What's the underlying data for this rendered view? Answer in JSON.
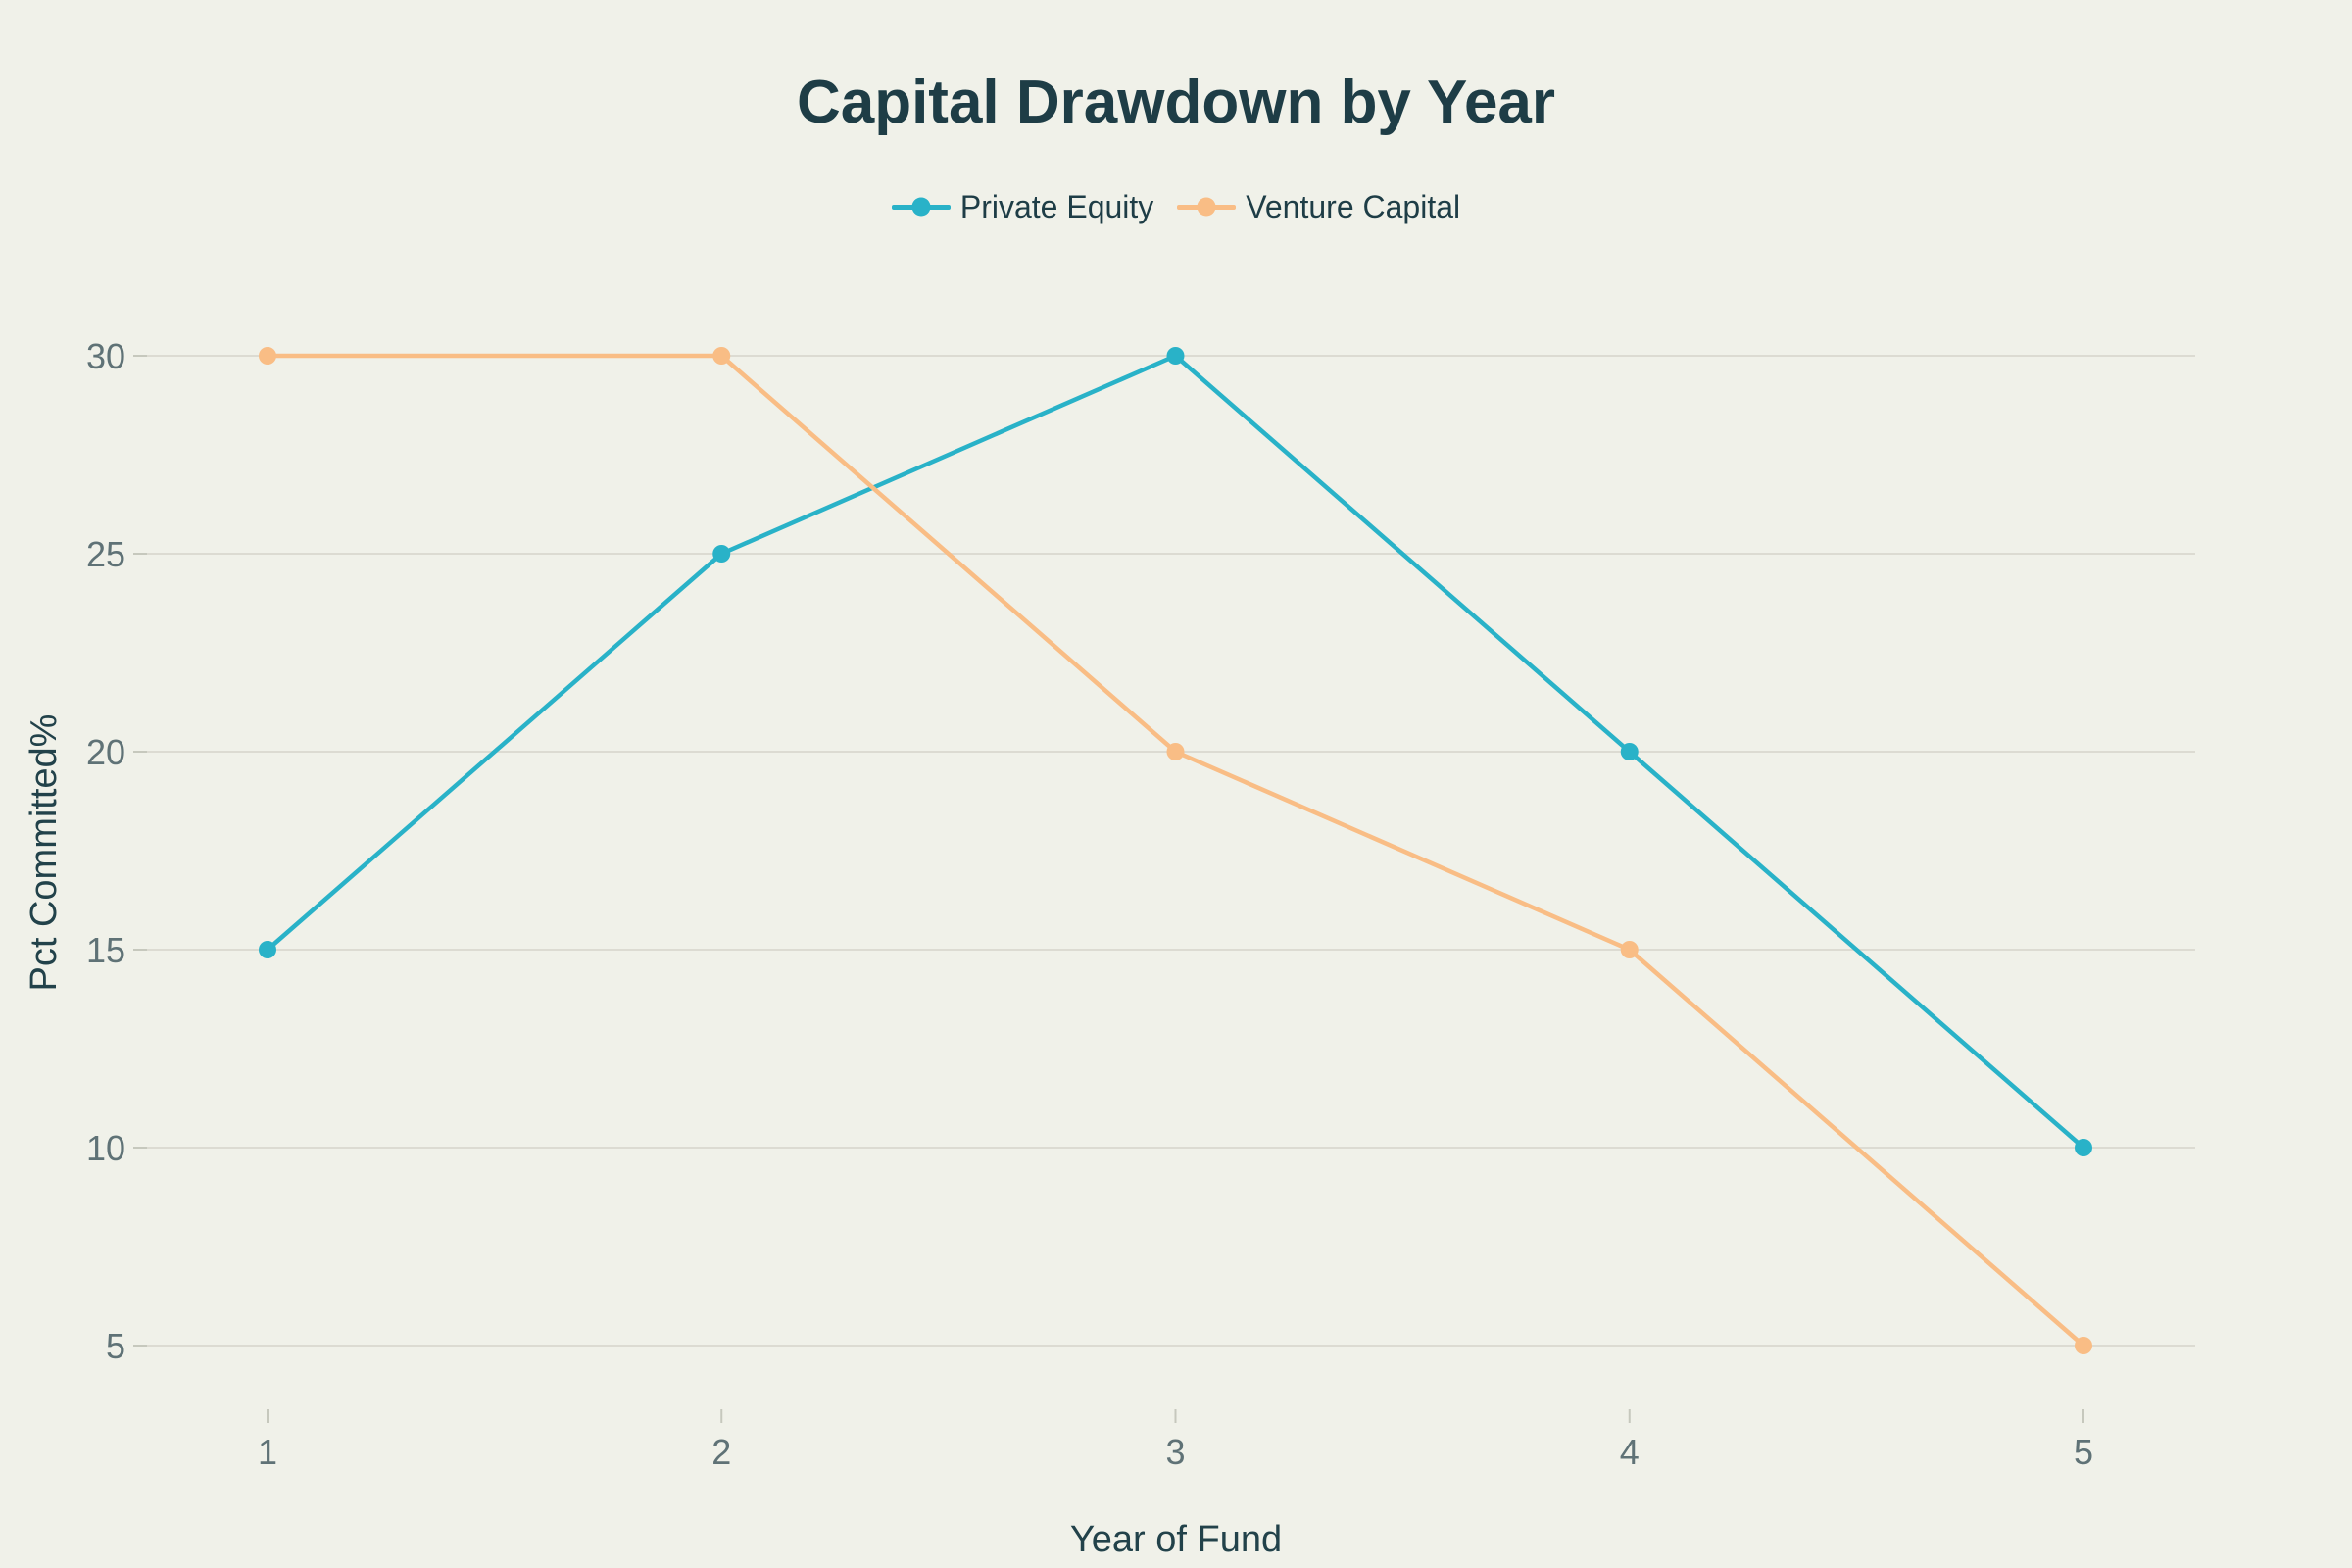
{
  "page": {
    "background_color": "#f0f1e9"
  },
  "chart_data": {
    "type": "line",
    "title": "Capital Drawdown by Year",
    "xlabel": "Year of Fund",
    "ylabel": "Pct Committed%",
    "x": [
      1,
      2,
      3,
      4,
      5
    ],
    "xtick_labels": [
      "1",
      "2",
      "3",
      "4",
      "5"
    ],
    "yticks": [
      5,
      10,
      15,
      20,
      25,
      30
    ],
    "ytick_labels": [
      "5",
      "10",
      "15",
      "20",
      "25",
      "30"
    ],
    "ylim": [
      5,
      30
    ],
    "grid": "horizontal",
    "legend_position": "top-center",
    "marker_style": "circle-on-line",
    "series": [
      {
        "name": "Private Equity",
        "color": "#29b2c8",
        "values": [
          15,
          25,
          30,
          20,
          10
        ],
        "line_width": 4.5,
        "marker_radius": 9
      },
      {
        "name": "Venture Capital",
        "color": "#f9bd85",
        "values": [
          30,
          30,
          20,
          15,
          5
        ],
        "line_width": 4.5,
        "marker_radius": 9
      }
    ],
    "colors": {
      "background": "#f0f1e9",
      "title_text": "#1e3d46",
      "legend_text": "#1e3d46",
      "axis_title_text": "#22424a",
      "tick_label_text": "#5f7276",
      "gridline": "#dcdbd2",
      "tick_mark": "#c6c8bd"
    }
  }
}
